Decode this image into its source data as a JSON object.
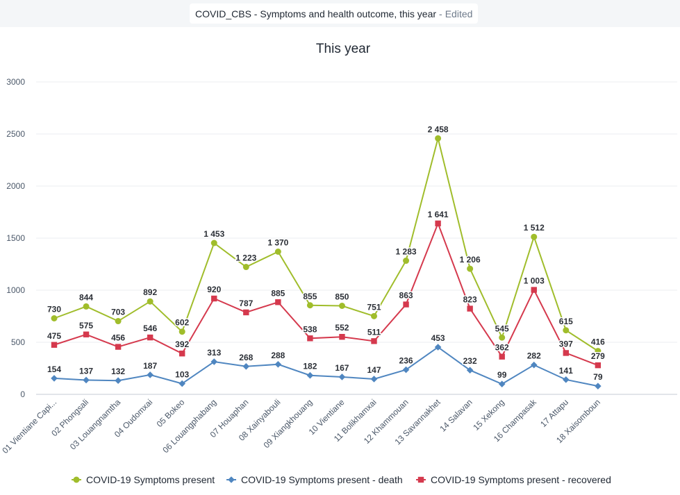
{
  "header": {
    "name": "COVID_CBS - Symptoms and health outcome, this year",
    "separator": "-",
    "status": "Edited"
  },
  "chart_data": {
    "type": "line",
    "title": "This year",
    "xlabel": "",
    "ylabel": "",
    "ylim": [
      0,
      3000
    ],
    "yticks": [
      0,
      500,
      1000,
      1500,
      2000,
      2500,
      3000
    ],
    "grid": true,
    "legend_position": "bottom",
    "categories": [
      "01 Vientiane Capi...",
      "02 Phongsali",
      "03 Louangnamtha",
      "04 Oudomxai",
      "05 Bokeo",
      "06 Louangphabang",
      "07 Houaphan",
      "08 Xainyabouli",
      "09 Xiangkhouang",
      "10 Vientiane",
      "11 Bolikhamxai",
      "12 Khammouan",
      "13 Savannakhet",
      "14 Salavan",
      "15 Xekong",
      "16 Champasak",
      "17 Attapu",
      "18 Xaisomboun"
    ],
    "series": [
      {
        "name": "COVID-19 Symptoms present",
        "color": "#a0bd2b",
        "marker": "circle",
        "values": [
          730,
          844,
          703,
          892,
          602,
          1453,
          1223,
          1370,
          855,
          850,
          751,
          1283,
          2458,
          1206,
          545,
          1512,
          615,
          416
        ],
        "labels": [
          "730",
          "844",
          "703",
          "892",
          "602",
          "1 453",
          "1 223",
          "1 370",
          "855",
          "850",
          "751",
          "1 283",
          "2 458",
          "1 206",
          "545",
          "1 512",
          "615",
          "416"
        ]
      },
      {
        "name": "COVID-19 Symptoms present - death",
        "color": "#4f86c0",
        "marker": "diamond",
        "values": [
          154,
          137,
          132,
          187,
          103,
          313,
          268,
          288,
          182,
          167,
          147,
          236,
          453,
          232,
          99,
          282,
          141,
          79
        ],
        "labels": [
          "154",
          "137",
          "132",
          "187",
          "103",
          "313",
          "268",
          "288",
          "182",
          "167",
          "147",
          "236",
          "453",
          "232",
          "99",
          "282",
          "141",
          "79"
        ]
      },
      {
        "name": "COVID-19 Symptoms present - recovered",
        "color": "#d5394d",
        "marker": "square",
        "values": [
          475,
          575,
          456,
          546,
          392,
          920,
          787,
          885,
          538,
          552,
          511,
          863,
          1641,
          823,
          362,
          1003,
          397,
          279
        ],
        "labels": [
          "475",
          "575",
          "456",
          "546",
          "392",
          "920",
          "787",
          "885",
          "538",
          "552",
          "511",
          "863",
          "1 641",
          "823",
          "362",
          "1 003",
          "397",
          "279"
        ]
      }
    ]
  }
}
